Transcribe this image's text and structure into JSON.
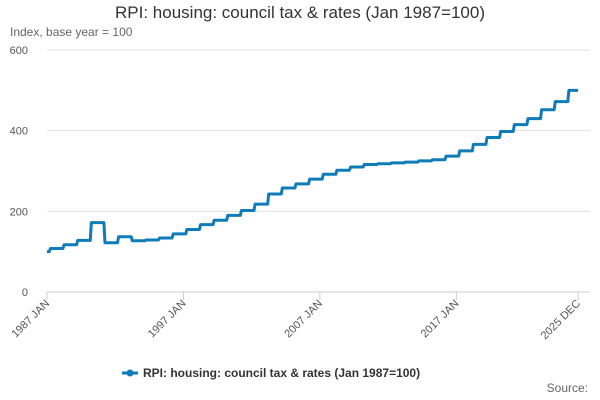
{
  "chart_data": {
    "type": "line",
    "title": "RPI: housing: council tax & rates (Jan 1987=100)",
    "subtitle": "Index, base year = 100",
    "source": "Source:",
    "x": [
      1987,
      1987.17,
      1987.25,
      1988.17,
      1988.25,
      1989.17,
      1989.25,
      1990.17,
      1990.25,
      1991.17,
      1991.25,
      1992.17,
      1992.25,
      1993.17,
      1993.25,
      1994.17,
      1994.25,
      1995.17,
      1995.25,
      1996.17,
      1996.25,
      1997.17,
      1997.25,
      1998.17,
      1998.25,
      1999.17,
      1999.25,
      2000.17,
      2000.25,
      2001.17,
      2001.25,
      2002.17,
      2002.25,
      2003.17,
      2003.25,
      2004.17,
      2004.25,
      2005.17,
      2005.25,
      2006.17,
      2006.25,
      2007.17,
      2007.25,
      2008.17,
      2008.25,
      2009.17,
      2009.25,
      2010.17,
      2010.25,
      2011.17,
      2011.25,
      2012.17,
      2012.25,
      2013.17,
      2013.25,
      2014.17,
      2014.25,
      2015.17,
      2015.25,
      2016.17,
      2016.25,
      2017.17,
      2017.25,
      2018.17,
      2018.25,
      2019.17,
      2019.25,
      2020.17,
      2020.25,
      2021.17,
      2021.25,
      2022.17,
      2022.25,
      2023.17,
      2023.25,
      2024.17,
      2024.25,
      2025.17,
      2025.25,
      2025.917
    ],
    "series": [
      {
        "name": "RPI: housing: council tax & rates (Jan 1987=100)",
        "color": "#0f7bb8",
        "values": [
          100,
          100,
          108,
          108,
          117,
          117,
          128,
          128,
          172,
          172,
          122,
          122,
          137,
          137,
          127,
          127,
          129,
          129,
          134,
          134,
          144,
          144,
          155,
          155,
          167,
          167,
          178,
          178,
          190,
          190,
          202,
          202,
          218,
          218,
          243,
          243,
          258,
          258,
          268,
          268,
          280,
          280,
          292,
          292,
          302,
          302,
          310,
          310,
          316,
          316,
          318,
          318,
          320,
          320,
          322,
          322,
          325,
          325,
          328,
          328,
          337,
          337,
          350,
          350,
          366,
          366,
          383,
          383,
          398,
          398,
          415,
          415,
          430,
          430,
          452,
          452,
          472,
          472,
          500,
          500
        ]
      }
    ],
    "xlim": [
      1987,
      2025.917
    ],
    "xticks": [
      {
        "value": 1987,
        "label": "1987 JAN"
      },
      {
        "value": 1997,
        "label": "1997 JAN"
      },
      {
        "value": 2007,
        "label": "2007 JAN"
      },
      {
        "value": 2017,
        "label": "2017 JAN"
      },
      {
        "value": 2025.917,
        "label": "2025 DEC"
      }
    ],
    "ylim": [
      0,
      600
    ],
    "yticks": [
      0,
      200,
      400,
      600
    ],
    "grid": true,
    "legend": "bottom"
  }
}
